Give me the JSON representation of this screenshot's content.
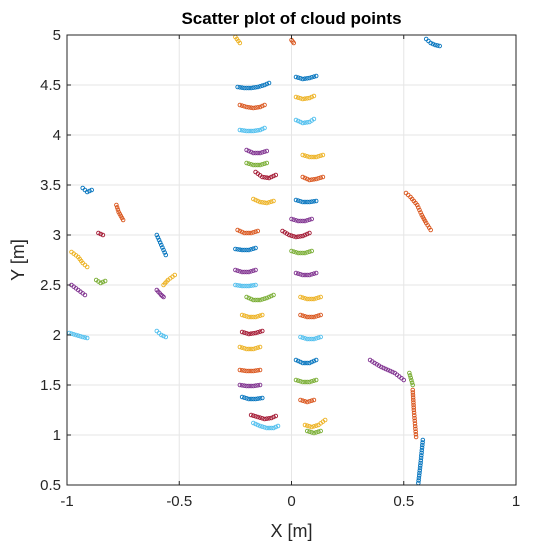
{
  "chart_data": {
    "type": "scatter",
    "title": "Scatter plot of cloud points",
    "xlabel": "X [m]",
    "ylabel": "Y [m]",
    "xlim": [
      -1,
      1
    ],
    "ylim": [
      0.5,
      5
    ],
    "grid": true,
    "xticks": [
      -1,
      -0.5,
      0,
      0.5,
      1
    ],
    "xtick_labels": [
      "-1",
      "-0.5",
      "0",
      "0.5",
      "1"
    ],
    "yticks": [
      0.5,
      1,
      1.5,
      2,
      2.5,
      3,
      3.5,
      4,
      4.5,
      5
    ],
    "ytick_labels": [
      "0.5",
      "1",
      "1.5",
      "2",
      "2.5",
      "3",
      "3.5",
      "4",
      "4.5",
      "5"
    ],
    "marker": "circle-open",
    "palette": [
      "#0072BD",
      "#D95319",
      "#EDB120",
      "#7E2F8E",
      "#77AC30",
      "#4DBEEE",
      "#A2142F"
    ],
    "segments": [
      {
        "x": [
          0.565,
          0.575,
          0.585
        ],
        "y": [
          0.52,
          0.72,
          0.95
        ],
        "color": "#0072BD"
      },
      {
        "x": [
          0.555,
          0.545,
          0.54
        ],
        "y": [
          0.98,
          1.25,
          1.45
        ],
        "color": "#D95319"
      },
      {
        "x": [
          0.5,
          0.46,
          0.43,
          0.4,
          0.37,
          0.35
        ],
        "y": [
          1.55,
          1.62,
          1.65,
          1.68,
          1.72,
          1.75
        ],
        "color": "#7E2F8E"
      },
      {
        "x": [
          0.54,
          0.525
        ],
        "y": [
          1.5,
          1.62
        ],
        "color": "#77AC30"
      },
      {
        "x": [
          0.51,
          0.53,
          0.56,
          0.58,
          0.6,
          0.62
        ],
        "y": [
          3.42,
          3.38,
          3.3,
          3.2,
          3.12,
          3.05
        ],
        "color": "#D95319"
      },
      {
        "x": [
          0.6,
          0.62,
          0.64,
          0.66
        ],
        "y": [
          4.96,
          4.92,
          4.9,
          4.89
        ],
        "color": "#0072BD"
      },
      {
        "x": [
          -0.98,
          -0.95,
          -0.93,
          -0.91
        ],
        "y": [
          2.83,
          2.78,
          2.72,
          2.68
        ],
        "color": "#EDB120"
      },
      {
        "x": [
          -0.98,
          -0.95,
          -0.92
        ],
        "y": [
          2.5,
          2.45,
          2.4
        ],
        "color": "#7E2F8E"
      },
      {
        "x": [
          -0.99,
          -0.96,
          -0.93,
          -0.91
        ],
        "y": [
          2.02,
          2.0,
          1.98,
          1.97
        ],
        "color": "#4DBEEE"
      },
      {
        "x": [
          -0.93,
          -0.91,
          -0.89
        ],
        "y": [
          3.47,
          3.43,
          3.45
        ],
        "color": "#0072BD"
      },
      {
        "x": [
          -0.86,
          -0.84
        ],
        "y": [
          3.02,
          3.0
        ],
        "color": "#A2142F"
      },
      {
        "x": [
          -0.87,
          -0.85,
          -0.83
        ],
        "y": [
          2.55,
          2.52,
          2.54
        ],
        "color": "#77AC30"
      },
      {
        "x": [
          -0.78,
          -0.77,
          -0.75
        ],
        "y": [
          3.3,
          3.23,
          3.15
        ],
        "color": "#D95319"
      },
      {
        "x": [
          -0.6,
          -0.58,
          -0.56
        ],
        "y": [
          3.0,
          2.9,
          2.8
        ],
        "color": "#0072BD"
      },
      {
        "x": [
          -0.6,
          -0.58,
          -0.57
        ],
        "y": [
          2.45,
          2.4,
          2.38
        ],
        "color": "#7E2F8E"
      },
      {
        "x": [
          -0.57,
          -0.55,
          -0.52
        ],
        "y": [
          2.5,
          2.55,
          2.6
        ],
        "color": "#EDB120"
      },
      {
        "x": [
          -0.6,
          -0.58,
          -0.56
        ],
        "y": [
          2.04,
          2.0,
          1.98
        ],
        "color": "#4DBEEE"
      },
      {
        "x": [
          -0.24,
          -0.21,
          -0.18,
          -0.15,
          -0.12,
          -0.1
        ],
        "y": [
          4.48,
          4.47,
          4.47,
          4.48,
          4.5,
          4.52
        ],
        "color": "#0072BD"
      },
      {
        "x": [
          -0.23,
          -0.2,
          -0.17,
          -0.14,
          -0.12
        ],
        "y": [
          4.3,
          4.28,
          4.27,
          4.28,
          4.3
        ],
        "color": "#D95319"
      },
      {
        "x": [
          -0.23,
          -0.2,
          -0.17,
          -0.14,
          -0.12
        ],
        "y": [
          4.05,
          4.04,
          4.04,
          4.05,
          4.07
        ],
        "color": "#4DBEEE"
      },
      {
        "x": [
          -0.2,
          -0.17,
          -0.14,
          -0.11
        ],
        "y": [
          3.85,
          3.82,
          3.82,
          3.84
        ],
        "color": "#7E2F8E"
      },
      {
        "x": [
          -0.2,
          -0.17,
          -0.14,
          -0.11
        ],
        "y": [
          3.72,
          3.7,
          3.7,
          3.72
        ],
        "color": "#77AC30"
      },
      {
        "x": [
          -0.16,
          -0.13,
          -0.1,
          -0.07
        ],
        "y": [
          3.63,
          3.58,
          3.57,
          3.6
        ],
        "color": "#A2142F"
      },
      {
        "x": [
          -0.17,
          -0.14,
          -0.11,
          -0.08
        ],
        "y": [
          3.36,
          3.33,
          3.32,
          3.34
        ],
        "color": "#EDB120"
      },
      {
        "x": [
          -0.24,
          -0.21,
          -0.18,
          -0.15
        ],
        "y": [
          3.05,
          3.02,
          3.02,
          3.04
        ],
        "color": "#D95319"
      },
      {
        "x": [
          -0.25,
          -0.22,
          -0.19,
          -0.16
        ],
        "y": [
          2.86,
          2.85,
          2.85,
          2.87
        ],
        "color": "#0072BD"
      },
      {
        "x": [
          -0.25,
          -0.22,
          -0.19,
          -0.16
        ],
        "y": [
          2.65,
          2.63,
          2.63,
          2.65
        ],
        "color": "#7E2F8E"
      },
      {
        "x": [
          -0.25,
          -0.22,
          -0.19,
          -0.16
        ],
        "y": [
          2.5,
          2.49,
          2.49,
          2.5
        ],
        "color": "#4DBEEE"
      },
      {
        "x": [
          -0.2,
          -0.17,
          -0.14,
          -0.11,
          -0.08
        ],
        "y": [
          2.38,
          2.35,
          2.35,
          2.37,
          2.4
        ],
        "color": "#77AC30"
      },
      {
        "x": [
          -0.22,
          -0.19,
          -0.16,
          -0.13
        ],
        "y": [
          2.2,
          2.18,
          2.18,
          2.2
        ],
        "color": "#EDB120"
      },
      {
        "x": [
          -0.22,
          -0.19,
          -0.16,
          -0.13
        ],
        "y": [
          2.03,
          2.01,
          2.02,
          2.04
        ],
        "color": "#A2142F"
      },
      {
        "x": [
          -0.23,
          -0.2,
          -0.17,
          -0.14
        ],
        "y": [
          1.88,
          1.86,
          1.86,
          1.88
        ],
        "color": "#EDB120"
      },
      {
        "x": [
          -0.23,
          -0.2,
          -0.17,
          -0.14
        ],
        "y": [
          1.65,
          1.64,
          1.64,
          1.65
        ],
        "color": "#D95319"
      },
      {
        "x": [
          -0.23,
          -0.2,
          -0.17,
          -0.14
        ],
        "y": [
          1.5,
          1.49,
          1.49,
          1.5
        ],
        "color": "#7E2F8E"
      },
      {
        "x": [
          -0.22,
          -0.19,
          -0.16,
          -0.13
        ],
        "y": [
          1.38,
          1.36,
          1.36,
          1.37
        ],
        "color": "#0072BD"
      },
      {
        "x": [
          -0.18,
          -0.15,
          -0.12,
          -0.09,
          -0.07
        ],
        "y": [
          1.2,
          1.18,
          1.16,
          1.17,
          1.19
        ],
        "color": "#A2142F"
      },
      {
        "x": [
          -0.17,
          -0.14,
          -0.11,
          -0.08,
          -0.06
        ],
        "y": [
          1.12,
          1.09,
          1.07,
          1.07,
          1.09
        ],
        "color": "#4DBEEE"
      },
      {
        "x": [
          0.02,
          0.05,
          0.08,
          0.11
        ],
        "y": [
          4.58,
          4.56,
          4.57,
          4.59
        ],
        "color": "#0072BD"
      },
      {
        "x": [
          0.02,
          0.05,
          0.08,
          0.1
        ],
        "y": [
          4.38,
          4.36,
          4.37,
          4.39
        ],
        "color": "#EDB120"
      },
      {
        "x": [
          0.02,
          0.05,
          0.08,
          0.1
        ],
        "y": [
          4.15,
          4.12,
          4.13,
          4.16
        ],
        "color": "#4DBEEE"
      },
      {
        "x": [
          0.05,
          0.08,
          0.11,
          0.14
        ],
        "y": [
          3.8,
          3.78,
          3.78,
          3.8
        ],
        "color": "#EDB120"
      },
      {
        "x": [
          0.05,
          0.08,
          0.11,
          0.14
        ],
        "y": [
          3.58,
          3.55,
          3.56,
          3.58
        ],
        "color": "#D95319"
      },
      {
        "x": [
          0.02,
          0.05,
          0.08,
          0.11
        ],
        "y": [
          3.35,
          3.33,
          3.33,
          3.34
        ],
        "color": "#0072BD"
      },
      {
        "x": [
          0.0,
          0.03,
          0.06,
          0.09
        ],
        "y": [
          3.16,
          3.14,
          3.14,
          3.16
        ],
        "color": "#7E2F8E"
      },
      {
        "x": [
          -0.04,
          -0.01,
          0.02,
          0.05,
          0.08
        ],
        "y": [
          3.04,
          3.0,
          2.98,
          2.99,
          3.02
        ],
        "color": "#A2142F"
      },
      {
        "x": [
          0.0,
          0.03,
          0.06,
          0.09
        ],
        "y": [
          2.84,
          2.82,
          2.82,
          2.84
        ],
        "color": "#77AC30"
      },
      {
        "x": [
          0.02,
          0.05,
          0.08,
          0.11
        ],
        "y": [
          2.62,
          2.6,
          2.6,
          2.62
        ],
        "color": "#7E2F8E"
      },
      {
        "x": [
          0.04,
          0.07,
          0.1,
          0.13
        ],
        "y": [
          2.38,
          2.36,
          2.36,
          2.38
        ],
        "color": "#EDB120"
      },
      {
        "x": [
          0.04,
          0.07,
          0.1,
          0.13
        ],
        "y": [
          2.2,
          2.18,
          2.18,
          2.2
        ],
        "color": "#D95319"
      },
      {
        "x": [
          0.04,
          0.07,
          0.1,
          0.13
        ],
        "y": [
          1.98,
          1.96,
          1.96,
          1.98
        ],
        "color": "#4DBEEE"
      },
      {
        "x": [
          0.02,
          0.05,
          0.08,
          0.11
        ],
        "y": [
          1.75,
          1.72,
          1.72,
          1.75
        ],
        "color": "#0072BD"
      },
      {
        "x": [
          0.02,
          0.05,
          0.08,
          0.11
        ],
        "y": [
          1.55,
          1.53,
          1.53,
          1.55
        ],
        "color": "#77AC30"
      },
      {
        "x": [
          0.04,
          0.07,
          0.1
        ],
        "y": [
          1.35,
          1.33,
          1.35
        ],
        "color": "#D95319"
      },
      {
        "x": [
          0.06,
          0.09,
          0.12,
          0.15
        ],
        "y": [
          1.1,
          1.08,
          1.1,
          1.15
        ],
        "color": "#EDB120"
      },
      {
        "x": [
          0.07,
          0.1,
          0.13
        ],
        "y": [
          1.04,
          1.02,
          1.04
        ],
        "color": "#77AC30"
      },
      {
        "x": [
          -0.25,
          -0.23
        ],
        "y": [
          4.98,
          4.92
        ],
        "color": "#EDB120"
      },
      {
        "x": [
          0.0,
          0.01
        ],
        "y": [
          4.95,
          4.92
        ],
        "color": "#D95319"
      }
    ]
  }
}
